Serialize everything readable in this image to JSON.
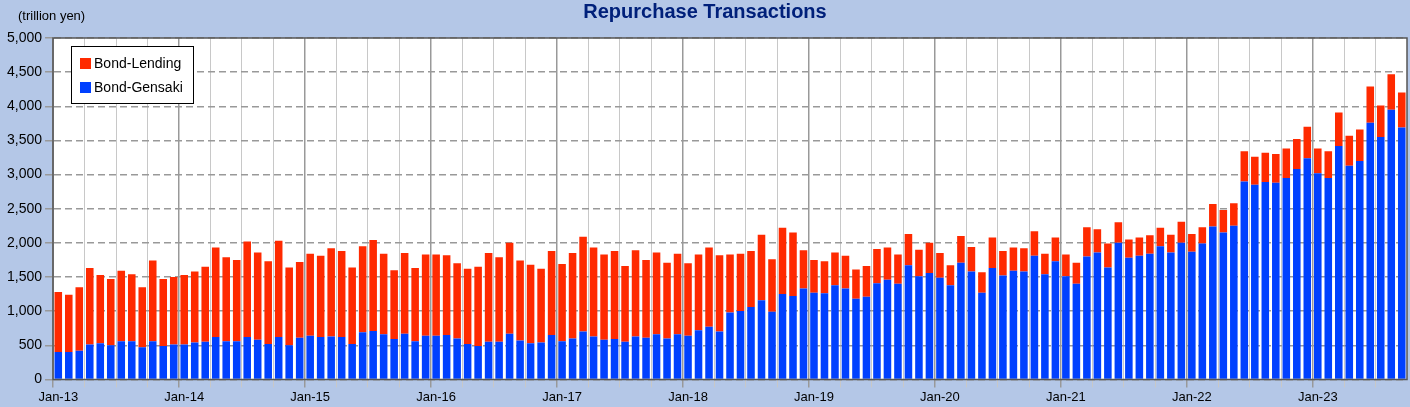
{
  "chart_data": {
    "type": "bar",
    "title": "Repurchase Transactions",
    "ylabel": "(trillion yen)",
    "stacked": true,
    "grid": true,
    "legend": "top left",
    "categories": [
      "Jan-13",
      null,
      null,
      null,
      null,
      null,
      null,
      null,
      null,
      null,
      null,
      null,
      "Jan-14",
      null,
      null,
      null,
      null,
      null,
      null,
      null,
      null,
      null,
      null,
      null,
      "Jan-15",
      null,
      null,
      null,
      null,
      null,
      null,
      null,
      null,
      null,
      null,
      null,
      "Jan-16",
      null,
      null,
      null,
      null,
      null,
      null,
      null,
      null,
      null,
      null,
      null,
      "Jan-17",
      null,
      null,
      null,
      null,
      null,
      null,
      null,
      null,
      null,
      null,
      null,
      "Jan-18",
      null,
      null,
      null,
      null,
      null,
      null,
      null,
      null,
      null,
      null,
      null,
      "Jan-19",
      null,
      null,
      null,
      null,
      null,
      null,
      null,
      null,
      null,
      null,
      null,
      "Jan-20",
      null,
      null,
      null,
      null,
      null,
      null,
      null,
      null,
      null,
      null,
      null,
      "Jan-21",
      null,
      null,
      null,
      null,
      null,
      null,
      null,
      null,
      null,
      null,
      null,
      "Jan-22",
      null,
      null,
      null,
      null,
      null,
      null,
      null,
      null,
      null,
      null,
      null,
      "Jan-23",
      null,
      null,
      null,
      null,
      null,
      null,
      null,
      null
    ],
    "ylim": [
      0,
      5000
    ],
    "yticks": [
      0,
      500,
      {
        "value": 1000,
        "label": "1,000"
      },
      {
        "value": 1500,
        "label": "1,500"
      },
      {
        "value": 2000,
        "label": "2,000"
      },
      {
        "value": 2500,
        "label": "2,500"
      },
      {
        "value": 3000,
        "label": "3,000"
      },
      {
        "value": 3500,
        "label": "3,500"
      },
      {
        "value": 4000,
        "label": "4,000"
      },
      {
        "value": 4500,
        "label": "4,500"
      },
      {
        "value": 5000,
        "label": "5,000"
      }
    ],
    "series": [
      {
        "name": "Bond-Gensaki",
        "color": "#0040ff",
        "values": [
          400,
          400,
          420,
          510,
          530,
          500,
          560,
          560,
          470,
          560,
          490,
          510,
          510,
          540,
          550,
          620,
          560,
          560,
          620,
          580,
          520,
          620,
          500,
          610,
          640,
          620,
          630,
          620,
          520,
          690,
          710,
          660,
          590,
          670,
          560,
          640,
          640,
          650,
          600,
          520,
          490,
          550,
          550,
          670,
          570,
          530,
          540,
          650,
          560,
          600,
          700,
          630,
          580,
          590,
          550,
          630,
          610,
          660,
          600,
          660,
          640,
          720,
          770,
          700,
          980,
          1000,
          1060,
          1160,
          990,
          1250,
          1220,
          1330,
          1270,
          1260,
          1380,
          1330,
          1180,
          1210,
          1410,
          1460,
          1400,
          1670,
          1510,
          1560,
          1490,
          1380,
          1710,
          1580,
          1270,
          1630,
          1520,
          1590,
          1580,
          1810,
          1540,
          1730,
          1510,
          1400,
          1800,
          1860,
          1640,
          2000,
          1780,
          1810,
          1840,
          1950,
          1860,
          2000,
          1870,
          1990,
          2240,
          2150,
          2250,
          2900,
          2850,
          2890,
          2880,
          2950,
          3080,
          3240,
          3020,
          2950,
          3420,
          3130,
          3200,
          3760,
          3550,
          3950,
          3690
        ]
      },
      {
        "name": "Bond-Lending",
        "color": "#ff2a00",
        "values": [
          880,
          840,
          930,
          1120,
          1000,
          970,
          1030,
          980,
          880,
          1180,
          980,
          990,
          1020,
          1040,
          1100,
          1310,
          1230,
          1190,
          1400,
          1280,
          1210,
          1410,
          1140,
          1110,
          1200,
          1190,
          1290,
          1260,
          1120,
          1260,
          1330,
          1180,
          1010,
          1180,
          1070,
          1190,
          1190,
          1170,
          1100,
          1100,
          1160,
          1300,
          1240,
          1330,
          1170,
          1150,
          1080,
          1230,
          1130,
          1250,
          1390,
          1300,
          1250,
          1290,
          1110,
          1260,
          1140,
          1200,
          1110,
          1180,
          1060,
          1110,
          1160,
          1120,
          850,
          840,
          820,
          960,
          770,
          970,
          930,
          560,
          480,
          470,
          480,
          480,
          430,
          450,
          500,
          470,
          430,
          460,
          390,
          440,
          360,
          290,
          390,
          360,
          300,
          450,
          360,
          340,
          340,
          360,
          300,
          350,
          320,
          310,
          430,
          340,
          350,
          300,
          270,
          270,
          270,
          270,
          260,
          310,
          260,
          240,
          330,
          330,
          330,
          440,
          410,
          430,
          420,
          430,
          440,
          460,
          360,
          390,
          490,
          440,
          460,
          530,
          460,
          520,
          510
        ]
      }
    ]
  }
}
